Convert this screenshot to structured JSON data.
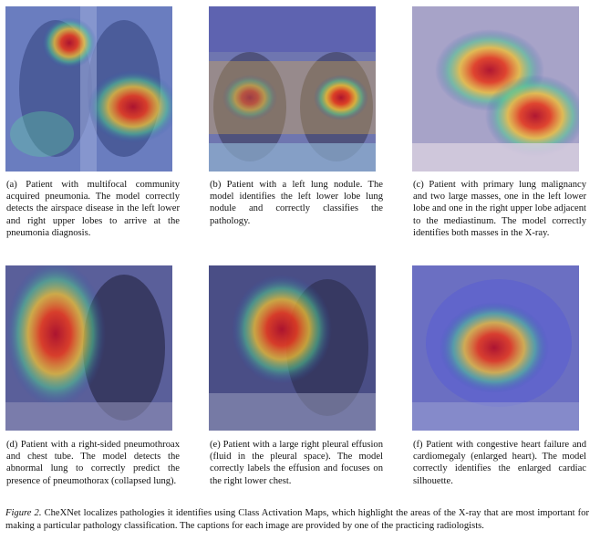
{
  "panels": [
    {
      "caption": "(a) Patient with multifocal community acquired pneumonia. The model correctly detects the airspace disease in the left lower and right upper lobes to arrive at the pneumonia diagnosis."
    },
    {
      "caption": "(b) Patient with a left lung nodule. The model identifies the left lower lobe lung nodule and correctly classifies the pathology."
    },
    {
      "caption": "(c) Patient with primary lung malignancy and two large masses, one in the left lower lobe and one in the right upper lobe adjacent to the mediastinum. The model correctly identifies both masses in the X-ray."
    },
    {
      "caption": "(d) Patient with a right-sided pneumothroax and chest tube. The model detects the abnormal lung to correctly predict the presence of pneumothorax (collapsed lung)."
    },
    {
      "caption": "(e) Patient with a large right pleural effusion (fluid in the pleural space). The model correctly labels the effusion and focuses on the right lower chest."
    },
    {
      "caption": "(f) Patient with congestive heart failure and cardiomegaly (enlarged heart). The model correctly identifies the enlarged cardiac silhouette."
    }
  ],
  "figure_caption": {
    "label": "Figure 2.",
    "text": " CheXNet localizes pathologies it identifies using Class Activation Maps, which highlight the areas of the X-ray that are most important for making a particular pathology classification. The captions for each image are provided by one of the practicing radiologists."
  }
}
